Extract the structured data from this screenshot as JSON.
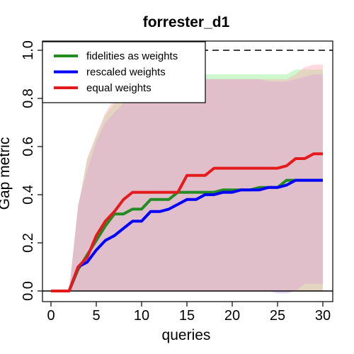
{
  "chart_data": {
    "type": "line",
    "title": "forrester_d1",
    "xlabel": "queries",
    "ylabel": "Gap metric",
    "xlim": [
      0,
      30
    ],
    "ylim": [
      0,
      1
    ],
    "xticks": [
      "0",
      "5",
      "10",
      "15",
      "20",
      "25",
      "30"
    ],
    "yticks": [
      "0.0",
      "0.2",
      "0.4",
      "0.6",
      "0.8",
      "1.0"
    ],
    "reference_lines": [
      {
        "y": 1.0,
        "style": "dashed",
        "color": "#000000"
      },
      {
        "y": 0.0,
        "style": "solid",
        "color": "#000000"
      }
    ],
    "legend_position": "top-left",
    "x": [
      0,
      1,
      2,
      3,
      4,
      5,
      6,
      7,
      8,
      9,
      10,
      11,
      12,
      13,
      14,
      15,
      16,
      17,
      18,
      19,
      20,
      21,
      22,
      23,
      24,
      25,
      26,
      27,
      28,
      29,
      30
    ],
    "series": [
      {
        "name": "fidelities as weights",
        "color": "#228B22",
        "band_color": "rgba(144,238,144,0.45)",
        "values": [
          0,
          0,
          0,
          0.09,
          0.15,
          0.21,
          0.27,
          0.32,
          0.32,
          0.34,
          0.34,
          0.38,
          0.38,
          0.38,
          0.41,
          0.41,
          0.41,
          0.41,
          0.41,
          0.42,
          0.42,
          0.42,
          0.42,
          0.43,
          0.43,
          0.43,
          0.46,
          0.46,
          0.46,
          0.46,
          0.46
        ],
        "lower": [
          0,
          0,
          0,
          0,
          0,
          0,
          0,
          0,
          0,
          0,
          0,
          0,
          0,
          0,
          0,
          0,
          0,
          0,
          0,
          0,
          0,
          0,
          0,
          0,
          0,
          0,
          0,
          0,
          0,
          0,
          0
        ],
        "upper": [
          0,
          0,
          0,
          0.35,
          0.55,
          0.64,
          0.73,
          0.78,
          0.8,
          0.82,
          0.84,
          0.86,
          0.87,
          0.88,
          0.89,
          0.9,
          0.9,
          0.9,
          0.9,
          0.9,
          0.9,
          0.9,
          0.9,
          0.9,
          0.9,
          0.9,
          0.9,
          0.92,
          0.92,
          0.92,
          0.92
        ]
      },
      {
        "name": "rescaled weights",
        "color": "#0000FF",
        "band_color": "rgba(190,160,240,0.45)",
        "values": [
          0,
          0,
          0,
          0.1,
          0.12,
          0.17,
          0.21,
          0.23,
          0.26,
          0.29,
          0.29,
          0.33,
          0.33,
          0.34,
          0.36,
          0.38,
          0.38,
          0.4,
          0.4,
          0.41,
          0.41,
          0.42,
          0.42,
          0.42,
          0.43,
          0.43,
          0.44,
          0.46,
          0.46,
          0.46,
          0.46
        ],
        "lower": [
          0,
          0,
          0,
          0,
          0,
          0,
          0,
          0,
          0,
          0,
          0,
          0,
          0,
          0,
          0,
          0,
          0,
          0,
          0,
          0,
          0,
          0,
          0,
          0,
          0,
          -0.01,
          -0.01,
          0,
          0.03,
          0.03,
          0.03
        ],
        "upper": [
          0,
          0,
          0,
          0.36,
          0.5,
          0.62,
          0.7,
          0.74,
          0.78,
          0.8,
          0.82,
          0.84,
          0.86,
          0.87,
          0.88,
          0.88,
          0.88,
          0.88,
          0.88,
          0.88,
          0.88,
          0.88,
          0.88,
          0.88,
          0.87,
          0.87,
          0.87,
          0.88,
          0.89,
          0.9,
          0.9
        ]
      },
      {
        "name": "equal weights",
        "color": "#E41A1C",
        "band_color": "rgba(255,170,180,0.45)",
        "values": [
          0,
          0,
          0,
          0.1,
          0.14,
          0.23,
          0.29,
          0.33,
          0.38,
          0.41,
          0.41,
          0.41,
          0.41,
          0.41,
          0.41,
          0.48,
          0.48,
          0.48,
          0.51,
          0.51,
          0.51,
          0.51,
          0.51,
          0.51,
          0.51,
          0.51,
          0.52,
          0.55,
          0.55,
          0.57,
          0.57
        ],
        "lower": [
          0,
          0,
          0,
          0,
          0,
          0,
          0,
          0,
          0,
          0,
          0,
          0,
          0,
          0,
          0,
          0,
          0,
          0,
          0,
          0,
          0,
          0,
          0,
          0,
          0,
          0,
          0,
          0,
          0,
          0,
          0
        ],
        "upper": [
          0,
          0,
          0,
          0.35,
          0.55,
          0.65,
          0.74,
          0.8,
          0.84,
          0.86,
          0.87,
          0.87,
          0.87,
          0.88,
          0.88,
          0.88,
          0.88,
          0.88,
          0.88,
          0.88,
          0.88,
          0.88,
          0.88,
          0.88,
          0.88,
          0.88,
          0.88,
          0.9,
          0.93,
          0.94,
          0.94
        ]
      }
    ]
  }
}
